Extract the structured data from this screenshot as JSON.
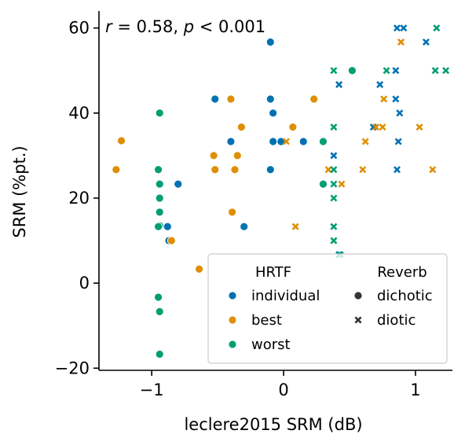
{
  "chart_data": {
    "type": "scatter",
    "xlabel": "leclere2015 SRM (dB)",
    "ylabel": "SRM (%pt.)",
    "xlim": [
      -1.4,
      1.28
    ],
    "ylim": [
      -20.5,
      64
    ],
    "xticks": [
      -1,
      0,
      1
    ],
    "yticks": [
      -20,
      0,
      20,
      40,
      60
    ],
    "xtick_labels": [
      "−1",
      "0",
      "1"
    ],
    "ytick_labels": [
      "−20",
      "0",
      "20",
      "40",
      "60"
    ],
    "grid": false,
    "annotation": {
      "r_sym": "r",
      "r_text": " = 0.58, ",
      "p_sym": "p",
      "p_text": " < 0.001"
    },
    "colors": {
      "individual": "#0072b2",
      "best": "#de8f05",
      "worst": "#029e73"
    },
    "legend": {
      "position": "bottom-right",
      "hue_title": "HRTF",
      "hue_entries": [
        "individual",
        "best",
        "worst"
      ],
      "style_title": "Reverb",
      "style_entries": [
        "dichotic",
        "diotic"
      ]
    },
    "series": [
      {
        "hrtf": "individual",
        "reverb": "dichotic",
        "points": [
          [
            -0.1,
            56.7
          ],
          [
            -0.52,
            43.3
          ],
          [
            -0.1,
            43.3
          ],
          [
            -0.08,
            40
          ],
          [
            -0.4,
            33.3
          ],
          [
            -0.08,
            33.3
          ],
          [
            -0.02,
            33.3
          ],
          [
            0.15,
            33.3
          ],
          [
            -0.52,
            26.7
          ],
          [
            -0.1,
            26.7
          ],
          [
            -0.8,
            23.3
          ],
          [
            -0.3,
            13.3
          ],
          [
            -0.88,
            13.3
          ],
          [
            -0.87,
            10
          ]
        ]
      },
      {
        "hrtf": "individual",
        "reverb": "diotic",
        "points": [
          [
            0.86,
            60
          ],
          [
            0.91,
            60
          ],
          [
            1.08,
            56.7
          ],
          [
            0.42,
            46.7
          ],
          [
            0.73,
            46.7
          ],
          [
            0.85,
            43.3
          ],
          [
            0.85,
            50
          ],
          [
            0.88,
            40
          ],
          [
            0.68,
            36.7
          ],
          [
            0.87,
            33.3
          ],
          [
            0.38,
            30
          ],
          [
            0.86,
            26.7
          ],
          [
            0.42,
            6.7
          ]
        ]
      },
      {
        "hrtf": "best",
        "reverb": "dichotic",
        "points": [
          [
            -1.23,
            33.5
          ],
          [
            -1.27,
            26.7
          ],
          [
            -0.4,
            43.3
          ],
          [
            -0.32,
            36.7
          ],
          [
            -0.53,
            30
          ],
          [
            -0.35,
            30
          ],
          [
            -0.52,
            26.7
          ],
          [
            -0.37,
            26.7
          ],
          [
            -0.39,
            16.7
          ],
          [
            0.07,
            36.7
          ],
          [
            0.23,
            43.3
          ],
          [
            -0.64,
            3.3
          ],
          [
            -0.85,
            10
          ]
        ]
      },
      {
        "hrtf": "best",
        "reverb": "diotic",
        "points": [
          [
            0.89,
            56.7
          ],
          [
            0.76,
            43.3
          ],
          [
            0.7,
            36.7
          ],
          [
            0.75,
            36.7
          ],
          [
            1.03,
            36.7
          ],
          [
            0.62,
            33.3
          ],
          [
            0.02,
            33.3
          ],
          [
            0.34,
            26.7
          ],
          [
            0.6,
            26.7
          ],
          [
            1.13,
            26.7
          ],
          [
            0.44,
            23.3
          ],
          [
            0.09,
            13.3
          ]
        ]
      },
      {
        "hrtf": "worst",
        "reverb": "dichotic",
        "points": [
          [
            -0.94,
            40
          ],
          [
            0.52,
            50
          ],
          [
            0.3,
            33.3
          ],
          [
            -0.95,
            26.7
          ],
          [
            0.3,
            23.3
          ],
          [
            -0.94,
            23.3
          ],
          [
            -0.94,
            20
          ],
          [
            -0.94,
            16.7
          ],
          [
            -0.94,
            13.5
          ],
          [
            -0.95,
            13.3
          ],
          [
            -0.95,
            -3.3
          ],
          [
            -0.94,
            -6.7
          ],
          [
            -0.94,
            -16.7
          ]
        ]
      },
      {
        "hrtf": "worst",
        "reverb": "diotic",
        "points": [
          [
            1.16,
            60
          ],
          [
            0.38,
            50
          ],
          [
            0.78,
            50
          ],
          [
            1.15,
            50
          ],
          [
            1.23,
            50
          ],
          [
            0.38,
            36.7
          ],
          [
            0.38,
            26.7
          ],
          [
            0.38,
            23.3
          ],
          [
            0.38,
            20
          ],
          [
            0.38,
            13.3
          ],
          [
            0.38,
            10
          ],
          [
            0.43,
            6.7
          ]
        ]
      }
    ]
  }
}
